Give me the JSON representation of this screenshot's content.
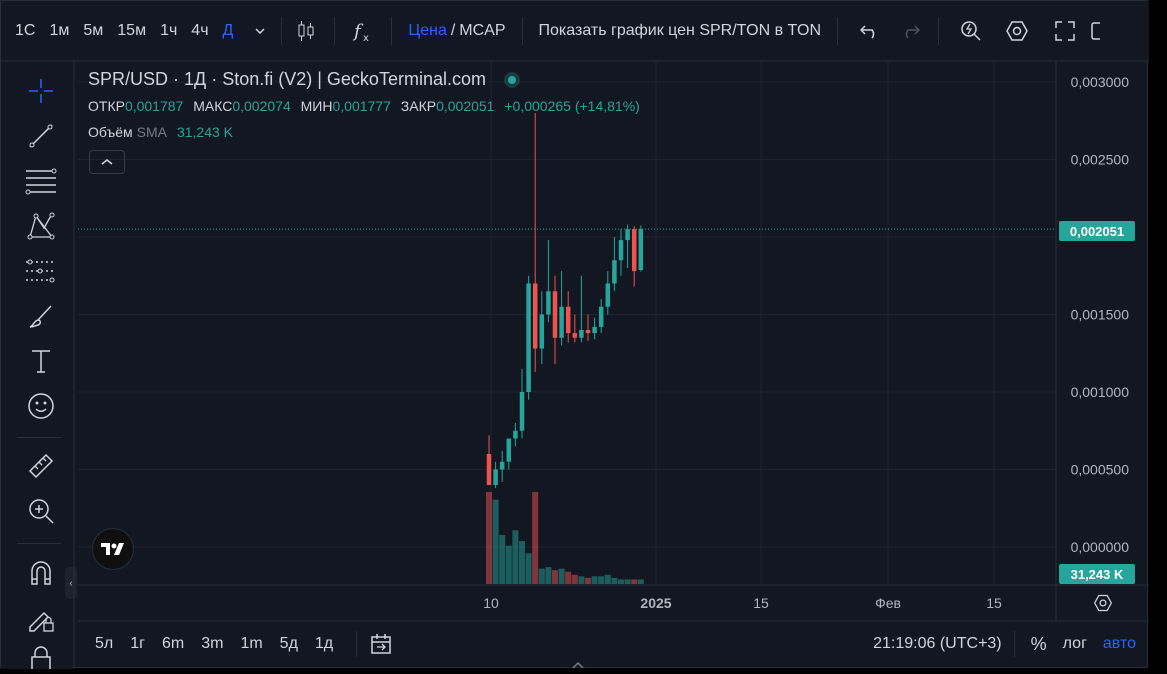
{
  "timeframes": [
    "1С",
    "1м",
    "5м",
    "15м",
    "1ч",
    "4ч",
    "Д"
  ],
  "active_timeframe": "Д",
  "toolbar": {
    "price_label": "Цена",
    "slash": "/",
    "mcap_label": "MCAP",
    "show_chart_label": "Показать график цен SPR/TON в TON"
  },
  "legend": {
    "title": "SPR/USD · 1Д · Ston.fi (V2) | GeckoTerminal.com",
    "open_key": "ОТКР",
    "open": "0,001787",
    "high_key": "МАКС",
    "high": "0,002074",
    "low_key": "МИН",
    "low": "0,001777",
    "close_key": "ЗАКР",
    "close": "0,002051",
    "change": "+0,000265 (+14,81%)",
    "volume_key": "Объём",
    "volume_sma": "SMA",
    "volume_value": "31,243 K"
  },
  "price_axis": {
    "ticks": [
      "0,003000",
      "0,002500",
      "0,001500",
      "0,001000",
      "0,000500",
      "0,000000"
    ],
    "last_price": "0,002051",
    "last_volume": "31,243 K"
  },
  "time_axis": {
    "ticks": [
      "10",
      "2025",
      "15",
      "Фев",
      "15"
    ]
  },
  "bottom": {
    "ranges": [
      "5л",
      "1г",
      "6m",
      "3m",
      "1m",
      "5д",
      "1д"
    ],
    "clock": "21:19:06 (UTC+3)",
    "percent": "%",
    "log": "лог",
    "auto": "авто"
  },
  "colors": {
    "up": "#26a69a",
    "down": "#ef5350",
    "accent": "#2962ff",
    "background": "#131722"
  },
  "chart_data": {
    "type": "candlestick",
    "ohlc": [
      {
        "o": 0.0006,
        "h": 0.00072,
        "l": 0.0004,
        "c": 0.0004
      },
      {
        "o": 0.0004,
        "h": 0.00055,
        "l": 0.00038,
        "c": 0.0005
      },
      {
        "o": 0.0005,
        "h": 0.00062,
        "l": 0.00042,
        "c": 0.00055
      },
      {
        "o": 0.00055,
        "h": 0.0007,
        "l": 0.0005,
        "c": 0.0007
      },
      {
        "o": 0.0007,
        "h": 0.0008,
        "l": 0.00065,
        "c": 0.00075
      },
      {
        "o": 0.00075,
        "h": 0.00115,
        "l": 0.0007,
        "c": 0.001
      },
      {
        "o": 0.001,
        "h": 0.00175,
        "l": 0.00095,
        "c": 0.0017
      },
      {
        "o": 0.0017,
        "h": 0.0028,
        "l": 0.00113,
        "c": 0.00128
      },
      {
        "o": 0.00128,
        "h": 0.00165,
        "l": 0.00118,
        "c": 0.0015
      },
      {
        "o": 0.0015,
        "h": 0.00198,
        "l": 0.00145,
        "c": 0.00165
      },
      {
        "o": 0.00165,
        "h": 0.00175,
        "l": 0.00118,
        "c": 0.00135
      },
      {
        "o": 0.00135,
        "h": 0.00178,
        "l": 0.0013,
        "c": 0.00155
      },
      {
        "o": 0.00155,
        "h": 0.00165,
        "l": 0.00132,
        "c": 0.00138
      },
      {
        "o": 0.00138,
        "h": 0.0015,
        "l": 0.00132,
        "c": 0.00135
      },
      {
        "o": 0.00135,
        "h": 0.00175,
        "l": 0.00132,
        "c": 0.0014
      },
      {
        "o": 0.0014,
        "h": 0.0015,
        "l": 0.00133,
        "c": 0.00138
      },
      {
        "o": 0.00138,
        "h": 0.00148,
        "l": 0.00134,
        "c": 0.00142
      },
      {
        "o": 0.00142,
        "h": 0.0016,
        "l": 0.00138,
        "c": 0.00155
      },
      {
        "o": 0.00155,
        "h": 0.00178,
        "l": 0.0015,
        "c": 0.0017
      },
      {
        "o": 0.0017,
        "h": 0.002,
        "l": 0.00165,
        "c": 0.00185
      },
      {
        "o": 0.00185,
        "h": 0.00205,
        "l": 0.00175,
        "c": 0.00198
      },
      {
        "o": 0.00198,
        "h": 0.00208,
        "l": 0.0018,
        "c": 0.00205
      },
      {
        "o": 0.00205,
        "h": 0.00207,
        "l": 0.00168,
        "c": 0.00178
      },
      {
        "o": 0.001787,
        "h": 0.002074,
        "l": 0.001777,
        "c": 0.002051
      }
    ],
    "volume": [
      60,
      55,
      32,
      25,
      35,
      28,
      20,
      60,
      10,
      11,
      9,
      10,
      8,
      6,
      5,
      4,
      5,
      5,
      6,
      4,
      3,
      3,
      3,
      3
    ],
    "ylim": [
      0,
      0.0031
    ]
  }
}
